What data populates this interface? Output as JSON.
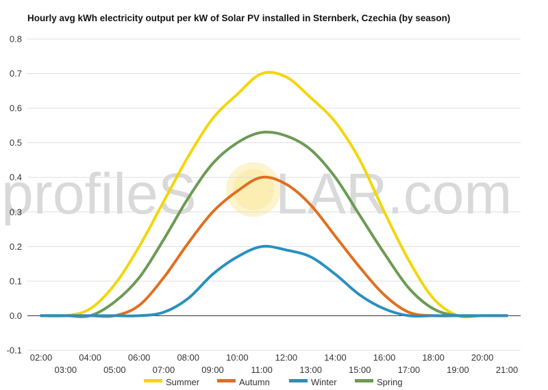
{
  "watermark": {
    "left": "profileS",
    "right": "LAR.com"
  },
  "chart_data": {
    "type": "line",
    "title": "Hourly avg kWh electricity output per kW of Solar PV installed in Sternberk, Czechia (by season)",
    "xlabel": "",
    "ylabel": "",
    "ylim": [
      -0.1,
      0.8
    ],
    "yticks": [
      "-0.1",
      "0.0",
      "0.1",
      "0.2",
      "0.3",
      "0.4",
      "0.5",
      "0.6",
      "0.7",
      "0.8"
    ],
    "x": [
      "02:00",
      "03:00",
      "04:00",
      "05:00",
      "06:00",
      "07:00",
      "08:00",
      "09:00",
      "10:00",
      "11:00",
      "12:00",
      "13:00",
      "14:00",
      "15:00",
      "16:00",
      "17:00",
      "18:00",
      "19:00",
      "20:00",
      "21:00"
    ],
    "grid": true,
    "legend_position": "bottom",
    "series": [
      {
        "name": "Summer",
        "color": "#f5d50c",
        "values": [
          0.0,
          0.0,
          0.02,
          0.09,
          0.2,
          0.33,
          0.46,
          0.57,
          0.64,
          0.7,
          0.69,
          0.63,
          0.56,
          0.45,
          0.3,
          0.16,
          0.05,
          0.0,
          0.0,
          0.0
        ]
      },
      {
        "name": "Autumn",
        "color": "#e06f20",
        "values": [
          0.0,
          0.0,
          0.0,
          0.0,
          0.03,
          0.11,
          0.21,
          0.3,
          0.36,
          0.4,
          0.38,
          0.32,
          0.23,
          0.14,
          0.06,
          0.01,
          0.0,
          0.0,
          0.0,
          0.0
        ]
      },
      {
        "name": "Winter",
        "color": "#2a8fbf",
        "values": [
          0.0,
          0.0,
          0.0,
          0.0,
          0.0,
          0.01,
          0.05,
          0.12,
          0.17,
          0.2,
          0.19,
          0.17,
          0.12,
          0.06,
          0.02,
          0.0,
          0.0,
          0.0,
          0.0,
          0.0
        ]
      },
      {
        "name": "Spring",
        "color": "#6c9a53",
        "values": [
          0.0,
          0.0,
          0.0,
          0.04,
          0.11,
          0.22,
          0.34,
          0.44,
          0.5,
          0.53,
          0.52,
          0.48,
          0.4,
          0.29,
          0.18,
          0.08,
          0.02,
          0.0,
          0.0,
          0.0
        ]
      }
    ]
  }
}
